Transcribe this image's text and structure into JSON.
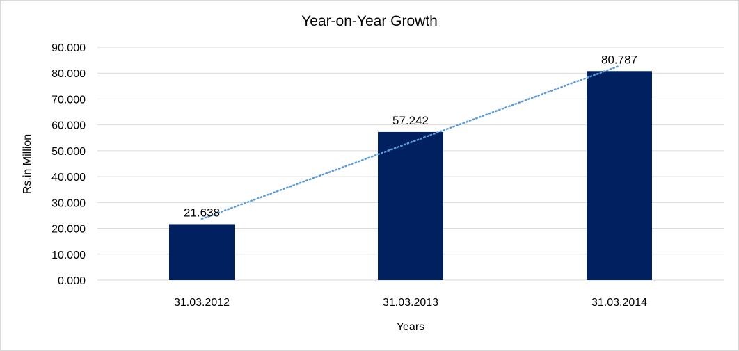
{
  "chart_data": {
    "type": "bar",
    "title": "Year-on-Year Growth",
    "xlabel": "Years",
    "ylabel": "Rs.in Million",
    "categories": [
      "31.03.2012",
      "31.03.2013",
      "31.03.2014"
    ],
    "values": [
      21.638,
      57.242,
      80.787
    ],
    "value_labels": [
      "21.638",
      "57.242",
      "80.787"
    ],
    "yticks": [
      "0.000",
      "10.000",
      "20.000",
      "30.000",
      "40.000",
      "50.000",
      "60.000",
      "70.000",
      "80.000",
      "90.000"
    ],
    "ylim": [
      0,
      90
    ],
    "grid": true,
    "legend": "none",
    "trendline": "linear, dotted",
    "colors": {
      "bar": "#002060",
      "trendline": "#5b9bd5",
      "grid": "#d9d9d9"
    }
  }
}
